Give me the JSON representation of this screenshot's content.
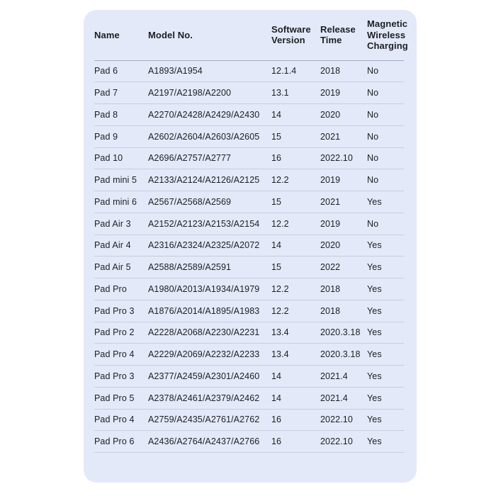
{
  "style": {
    "page_bg": "#ffffff",
    "card_bg": "#e3e9f8",
    "row_divider": "#c7cddd",
    "header_divider": "#a3abbd",
    "text_color": "#1d1f24"
  },
  "chart_data": {
    "type": "table",
    "title": "",
    "columns": [
      "Name",
      "Model No.",
      "Software Version",
      "Release Time",
      "Magnetic Wireless Charging"
    ],
    "rows": [
      [
        "Pad 6",
        "A1893/A1954",
        "12.1.4",
        "2018",
        "No"
      ],
      [
        "Pad 7",
        "A2197/A2198/A2200",
        "13.1",
        "2019",
        "No"
      ],
      [
        "Pad 8",
        "A2270/A2428/A2429/A2430",
        "14",
        "2020",
        "No"
      ],
      [
        "Pad 9",
        "A2602/A2604/A2603/A2605",
        "15",
        "2021",
        "No"
      ],
      [
        "Pad 10",
        "A2696/A2757/A2777",
        "16",
        "2022.10",
        "No"
      ],
      [
        "Pad mini 5",
        "A2133/A2124/A2126/A2125",
        "12.2",
        "2019",
        "No"
      ],
      [
        "Pad mini 6",
        "A2567/A2568/A2569",
        "15",
        "2021",
        "Yes"
      ],
      [
        "Pad Air 3",
        "A2152/A2123/A2153/A2154",
        "12.2",
        "2019",
        "No"
      ],
      [
        "Pad Air 4",
        "A2316/A2324/A2325/A2072",
        "14",
        "2020",
        "Yes"
      ],
      [
        "Pad Air 5",
        "A2588/A2589/A2591",
        "15",
        "2022",
        "Yes"
      ],
      [
        "Pad Pro",
        "A1980/A2013/A1934/A1979",
        "12.2",
        "2018",
        "Yes"
      ],
      [
        "Pad Pro 3",
        "A1876/A2014/A1895/A1983",
        "12.2",
        "2018",
        "Yes"
      ],
      [
        "Pad Pro 2",
        "A2228/A2068/A2230/A2231",
        "13.4",
        "2020.3.18",
        "Yes"
      ],
      [
        "Pad Pro 4",
        "A2229/A2069/A2232/A2233",
        "13.4",
        "2020.3.18",
        "Yes"
      ],
      [
        "Pad Pro 3",
        "A2377/A2459/A2301/A2460",
        "14",
        "2021.4",
        "Yes"
      ],
      [
        "Pad Pro 5",
        "A2378/A2461/A2379/A2462",
        "14",
        "2021.4",
        "Yes"
      ],
      [
        "Pad Pro 4",
        "A2759/A2435/A2761/A2762",
        "16",
        "2022.10",
        "Yes"
      ],
      [
        "Pad Pro 6",
        "A2436/A2764/A2437/A2766",
        "16",
        "2022.10",
        "Yes"
      ]
    ]
  }
}
